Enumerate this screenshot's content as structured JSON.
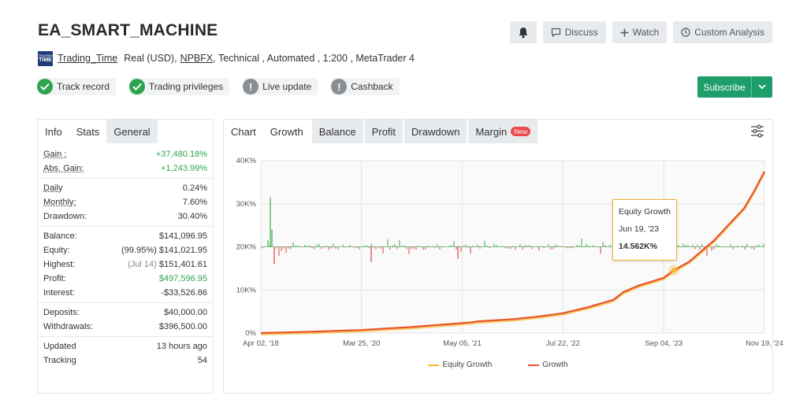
{
  "header": {
    "title": "EA_SMART_MACHINE",
    "actions": {
      "discuss": "Discuss",
      "watch": "Watch",
      "custom_analysis": "Custom Analysis"
    }
  },
  "meta": {
    "logo_text": "TIME",
    "logo_small": "TRADING",
    "owner": "Trading_Time",
    "account_type": "Real (USD),",
    "broker": "NPBFX",
    "rest": ", Technical , Automated , 1:200 , MetaTrader 4"
  },
  "badges": [
    {
      "label": "Track record",
      "status": "ok"
    },
    {
      "label": "Trading privileges",
      "status": "ok"
    },
    {
      "label": "Live update",
      "status": "warn"
    },
    {
      "label": "Cashback",
      "status": "warn"
    }
  ],
  "subscribe": {
    "label": "Subscribe"
  },
  "left_tabs": [
    "Info",
    "Stats",
    "General"
  ],
  "stats": {
    "gain": {
      "k": "Gain :",
      "v": "+37,480.18%"
    },
    "abs_gain": {
      "k": "Abs. Gain:",
      "v": "+1,243.99%"
    },
    "daily": {
      "k": "Daily",
      "v": "0.24%"
    },
    "monthly": {
      "k": "Monthly:",
      "v": "7.60%"
    },
    "drawdown": {
      "k": "Drawdown:",
      "v": "30.40%"
    },
    "balance": {
      "k": "Balance:",
      "v": "$141,096.95"
    },
    "equity": {
      "k": "Equity:",
      "pre": "(99.95%)",
      "v": "$141,021.95"
    },
    "highest": {
      "k": "Highest:",
      "pre": "(Jul 14)",
      "v": "$151,401.61"
    },
    "profit": {
      "k": "Profit:",
      "v": "$497,596.95"
    },
    "interest": {
      "k": "Interest:",
      "v": "-$33,526.86"
    },
    "deposits": {
      "k": "Deposits:",
      "v": "$40,000.00"
    },
    "withdrawals": {
      "k": "Withdrawals:",
      "v": "$396,500.00"
    },
    "updated": {
      "k": "Updated",
      "v": "13 hours ago"
    },
    "tracking": {
      "k": "Tracking",
      "v": "54"
    }
  },
  "chart_tabs": {
    "chart": "Chart",
    "growth": "Growth",
    "balance": "Balance",
    "profit": "Profit",
    "drawdown": "Drawdown",
    "margin": "Margin",
    "new_badge": "New"
  },
  "tooltip": {
    "series": "Equity Growth",
    "date": "Jun 19, '23",
    "value": "14.562K%"
  },
  "colors": {
    "growth": "#e8542a",
    "equity": "#f5b731",
    "bar_up": "#3aa84a",
    "bar_down": "#d94040",
    "subscribe": "#1e9e6a"
  },
  "chart_data": {
    "type": "line",
    "x_tick_labels": [
      "Apr 02, '18",
      "Mar 25, '20",
      "May 05, '21",
      "Jul 22, '22",
      "Sep 04, '23",
      "Nov 19, '24"
    ],
    "y_tick_labels": [
      "0%",
      "10K%",
      "20K%",
      "30K%",
      "40K%"
    ],
    "ylim": [
      0,
      40000
    ],
    "legend": [
      "Equity Growth",
      "Growth"
    ],
    "series": [
      {
        "name": "Growth",
        "x": [
          0,
          0.1,
          0.2,
          0.3,
          0.4,
          0.42,
          0.43,
          0.5,
          0.55,
          0.6,
          0.65,
          0.7,
          0.72,
          0.75,
          0.8,
          0.82,
          0.85,
          0.88,
          0.9,
          0.92,
          0.94,
          0.96,
          0.98,
          1.0
        ],
        "values": [
          0,
          300,
          700,
          1400,
          2300,
          2500,
          2700,
          3200,
          3800,
          4600,
          6000,
          7700,
          9500,
          11000,
          12800,
          14562,
          16500,
          19500,
          21500,
          24000,
          26500,
          29000,
          33000,
          37480
        ]
      }
    ],
    "daily_bars_baseline": 20000
  }
}
